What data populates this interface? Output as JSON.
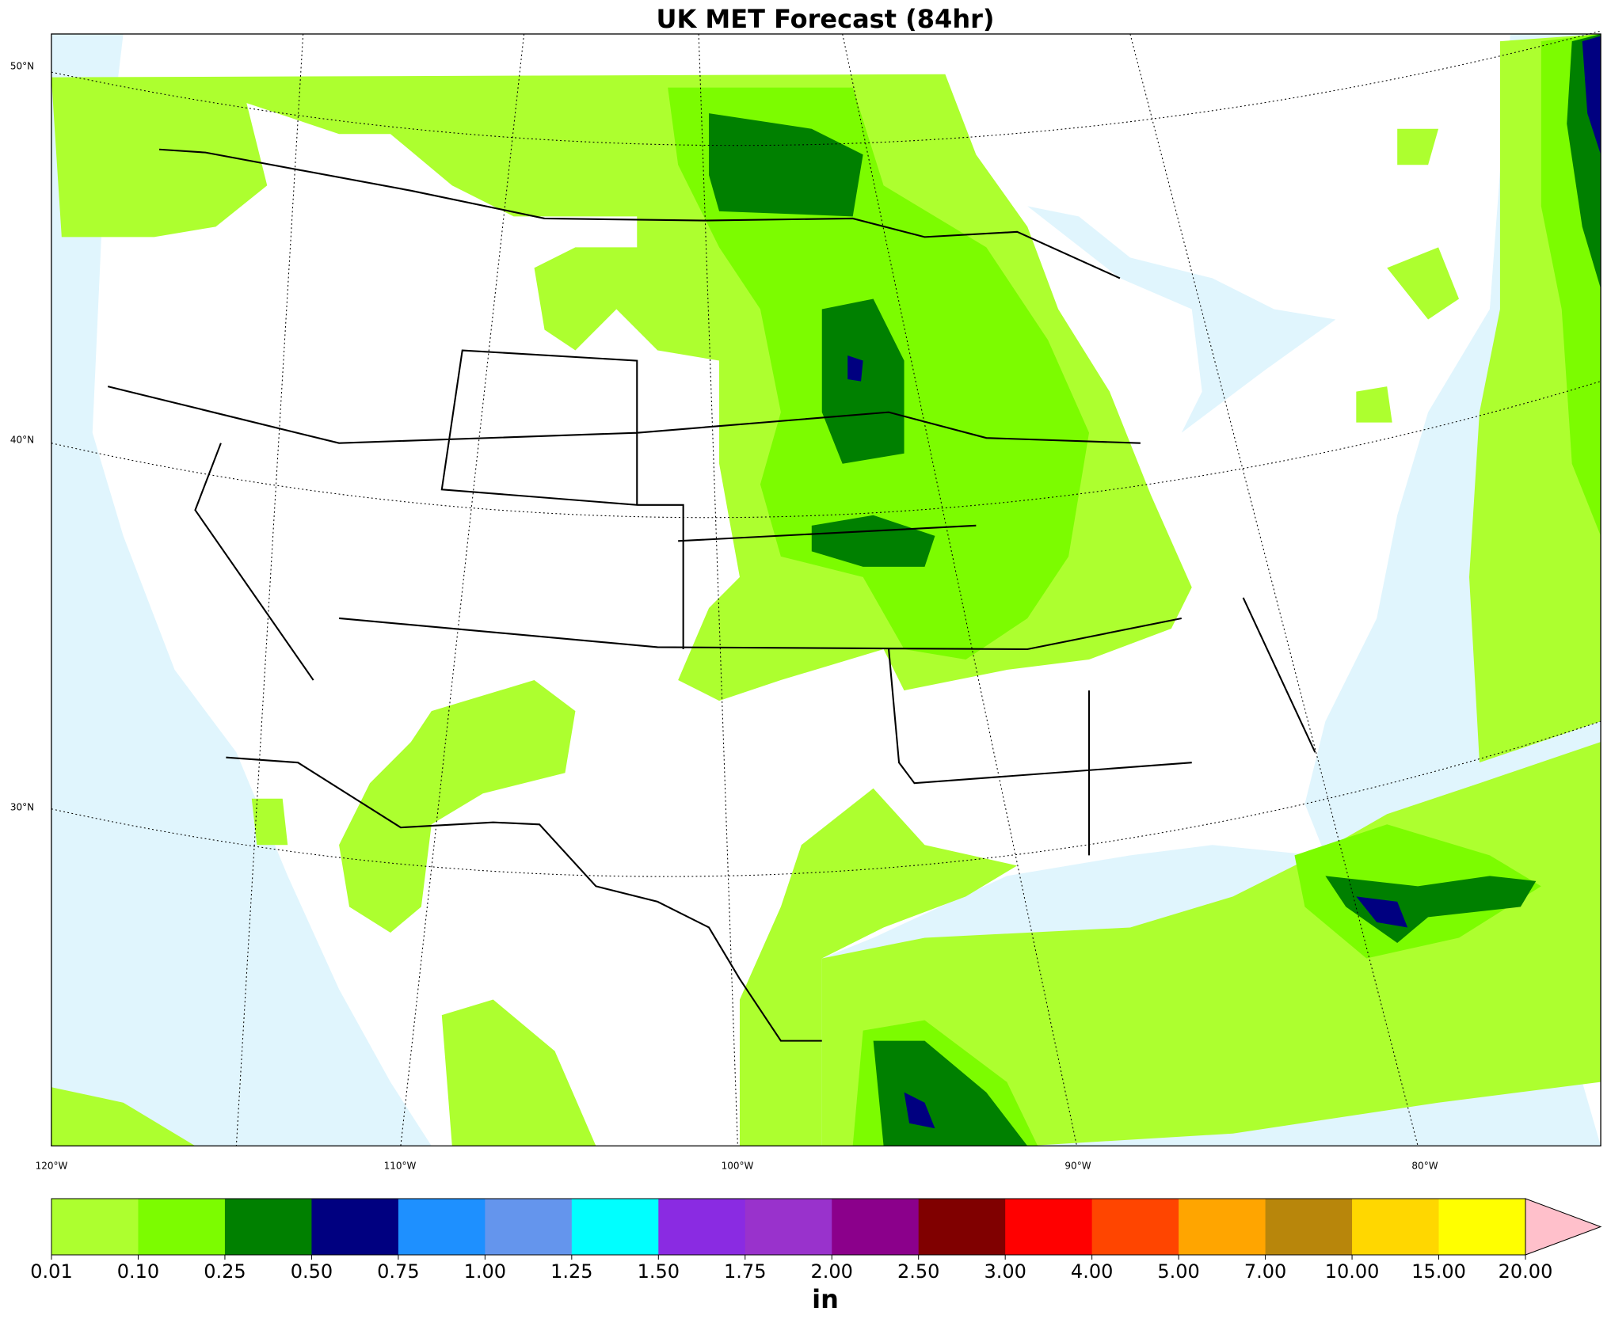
{
  "header": {
    "title": "UK MET Forecast (84hr)"
  },
  "map": {
    "lat_labels": [
      "50°N",
      "40°N",
      "30°N"
    ],
    "lon_labels": [
      "120°W",
      "110°W",
      "100°W",
      "90°W",
      "80°W"
    ]
  },
  "colorbar": {
    "levels": [
      "0.01",
      "0.10",
      "0.25",
      "0.50",
      "0.75",
      "1.00",
      "1.25",
      "1.50",
      "1.75",
      "2.00",
      "2.50",
      "3.00",
      "4.00",
      "5.00",
      "7.00",
      "10.00",
      "15.00",
      "20.00"
    ],
    "colors": [
      "#adff2f",
      "#7cfc00",
      "#008000",
      "#000080",
      "#1e90ff",
      "#6495ed",
      "#00ffff",
      "#8a2be2",
      "#9932cc",
      "#8b008b",
      "#800000",
      "#ff0000",
      "#ff4500",
      "#ffa500",
      "#b8860b",
      "#ffd700",
      "#ffff00"
    ],
    "extend_color": "#ffc0cb",
    "unit": "in"
  }
}
